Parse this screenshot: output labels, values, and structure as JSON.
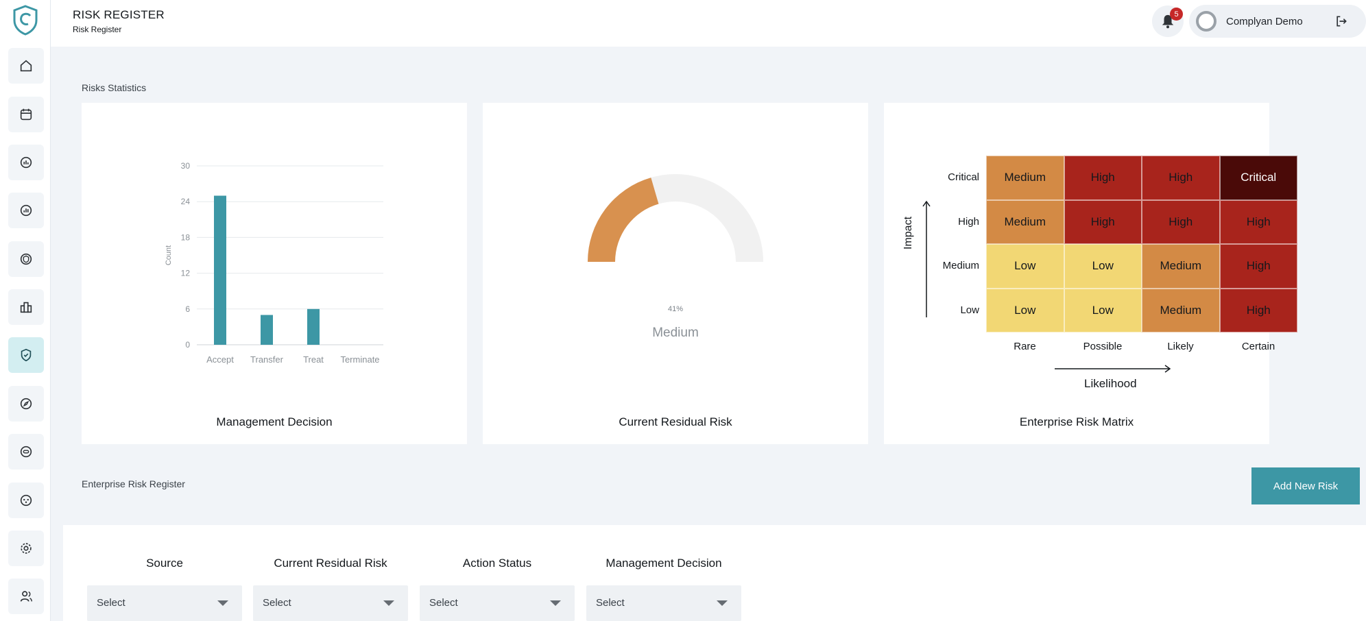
{
  "header": {
    "title": "RISK REGISTER",
    "subtitle": "Risk Register",
    "notification_count": "5",
    "user_name": "Complyan Demo"
  },
  "sidebar": {
    "items": [
      {
        "icon": "home-icon"
      },
      {
        "icon": "calendar-icon"
      },
      {
        "icon": "report-icon"
      },
      {
        "icon": "analytics-icon"
      },
      {
        "icon": "policy-icon"
      },
      {
        "icon": "buildings-icon"
      },
      {
        "icon": "shield-check-icon",
        "active": true
      },
      {
        "icon": "compass-icon"
      },
      {
        "icon": "toggle-icon"
      },
      {
        "icon": "network-icon"
      },
      {
        "icon": "gear-icon"
      },
      {
        "icon": "users-icon"
      }
    ]
  },
  "stats": {
    "section_label": "Risks Statistics"
  },
  "management_decision": {
    "title": "Management Decision"
  },
  "residual_risk": {
    "title": "Current Residual Risk",
    "percent_label": "41%",
    "level_label": "Medium",
    "fill_fraction": 0.41,
    "fill_color": "#d8914f",
    "track_color": "#f1f1f1"
  },
  "risk_matrix": {
    "title": "Enterprise Risk Matrix",
    "y_axis_label": "Impact",
    "x_axis_label": "Likelihood",
    "rows": [
      "Critical",
      "High",
      "Medium",
      "Low"
    ],
    "columns": [
      "Rare",
      "Possible",
      "Likely",
      "Certain"
    ],
    "cells": [
      [
        {
          "text": "Medium",
          "level": "medium"
        },
        {
          "text": "High",
          "level": "high"
        },
        {
          "text": "High",
          "level": "high"
        },
        {
          "text": "Critical",
          "level": "critical"
        }
      ],
      [
        {
          "text": "Medium",
          "level": "medium"
        },
        {
          "text": "High",
          "level": "high"
        },
        {
          "text": "High",
          "level": "high"
        },
        {
          "text": "High",
          "level": "high"
        }
      ],
      [
        {
          "text": "Low",
          "level": "low"
        },
        {
          "text": "Low",
          "level": "low"
        },
        {
          "text": "Medium",
          "level": "medium"
        },
        {
          "text": "High",
          "level": "high"
        }
      ],
      [
        {
          "text": "Low",
          "level": "low"
        },
        {
          "text": "Low",
          "level": "low"
        },
        {
          "text": "Medium",
          "level": "medium"
        },
        {
          "text": "High",
          "level": "high"
        }
      ]
    ],
    "level_colors": {
      "low": "#f2d774",
      "medium": "#d38a45",
      "high": "#a8241c",
      "critical": "#4a0a08"
    }
  },
  "register": {
    "section_label": "Enterprise Risk Register",
    "add_button": "Add New Risk",
    "filters": [
      {
        "label": "Source",
        "value": "Select"
      },
      {
        "label": "Current Residual Risk",
        "value": "Select"
      },
      {
        "label": "Action Status",
        "value": "Select"
      },
      {
        "label": "Management Decision",
        "value": "Select"
      }
    ]
  },
  "colors": {
    "accent": "#3d97a5",
    "bar": "#3d97a5"
  },
  "chart_data": {
    "type": "bar",
    "categories": [
      "Accept",
      "Transfer",
      "Treat",
      "Terminate"
    ],
    "values": [
      25,
      5,
      6,
      0
    ],
    "ylabel": "Count",
    "yticks": [
      0,
      6,
      12,
      18,
      24,
      30
    ],
    "ylim": [
      0,
      30
    ],
    "grid": true
  }
}
